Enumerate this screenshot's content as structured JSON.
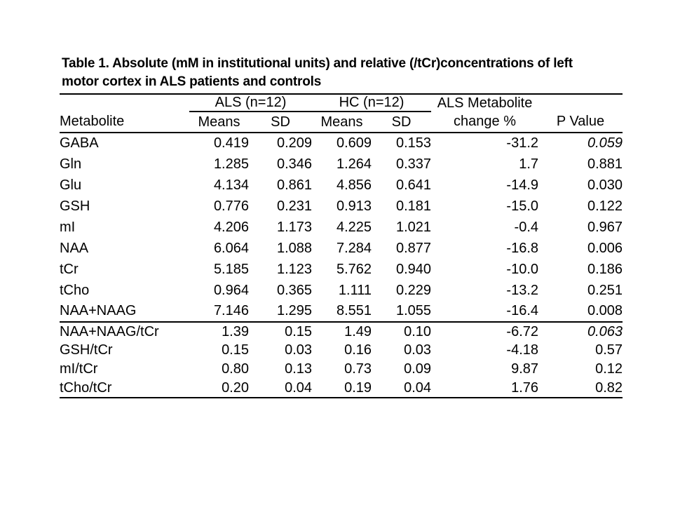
{
  "slide": {
    "title_line1": "Table 1. Absolute (mM in institutional units) and relative (/tCr)concentrations of left",
    "title_line2": "motor cortex in ALS patients and controls"
  },
  "table": {
    "group_headers": {
      "als": "ALS (n=12)",
      "hc": "HC (n=12)",
      "change_line1": "ALS Metabolite"
    },
    "column_headers": {
      "metabolite": "Metabolite",
      "als_means": "Means",
      "als_sd": "SD",
      "hc_means": "Means",
      "hc_sd": "SD",
      "change_line2": "change %",
      "p_value": "P Value"
    },
    "rows": [
      {
        "metabolite": "GABA",
        "als_mean": "0.419",
        "als_sd": "0.209",
        "hc_mean": "0.609",
        "hc_sd": "0.153",
        "change_pct": "-31.2",
        "p_value": "0.059",
        "p_style": "bold-italic",
        "section": "absolute"
      },
      {
        "metabolite": "Gln",
        "als_mean": "1.285",
        "als_sd": "0.346",
        "hc_mean": "1.264",
        "hc_sd": "0.337",
        "change_pct": "1.7",
        "p_value": "0.881",
        "p_style": "normal",
        "section": "absolute"
      },
      {
        "metabolite": "Glu",
        "als_mean": "4.134",
        "als_sd": "0.861",
        "hc_mean": "4.856",
        "hc_sd": "0.641",
        "change_pct": "-14.9",
        "p_value": "0.030",
        "p_style": "bold",
        "section": "absolute"
      },
      {
        "metabolite": "GSH",
        "als_mean": "0.776",
        "als_sd": "0.231",
        "hc_mean": "0.913",
        "hc_sd": "0.181",
        "change_pct": "-15.0",
        "p_value": "0.122",
        "p_style": "normal",
        "section": "absolute"
      },
      {
        "metabolite": "mI",
        "als_mean": "4.206",
        "als_sd": "1.173",
        "hc_mean": "4.225",
        "hc_sd": "1.021",
        "change_pct": "-0.4",
        "p_value": "0.967",
        "p_style": "normal",
        "section": "absolute"
      },
      {
        "metabolite": "NAA",
        "als_mean": "6.064",
        "als_sd": "1.088",
        "hc_mean": "7.284",
        "hc_sd": "0.877",
        "change_pct": "-16.8",
        "p_value": "0.006",
        "p_style": "bold",
        "section": "absolute"
      },
      {
        "metabolite": "tCr",
        "als_mean": "5.185",
        "als_sd": "1.123",
        "hc_mean": "5.762",
        "hc_sd": "0.940",
        "change_pct": "-10.0",
        "p_value": "0.186",
        "p_style": "normal",
        "section": "absolute"
      },
      {
        "metabolite": "tCho",
        "als_mean": "0.964",
        "als_sd": "0.365",
        "hc_mean": "1.111",
        "hc_sd": "0.229",
        "change_pct": "-13.2",
        "p_value": "0.251",
        "p_style": "normal",
        "section": "absolute"
      },
      {
        "metabolite": "NAA+NAAG",
        "als_mean": "7.146",
        "als_sd": "1.295",
        "hc_mean": "8.551",
        "hc_sd": "1.055",
        "change_pct": "-16.4",
        "p_value": "0.008",
        "p_style": "bold",
        "section": "absolute"
      },
      {
        "metabolite": "NAA+NAAG/tCr",
        "als_mean": "1.39",
        "als_sd": "0.15",
        "hc_mean": "1.49",
        "hc_sd": "0.10",
        "change_pct": "-6.72",
        "p_value": "0.063",
        "p_style": "bold-italic",
        "section": "relative"
      },
      {
        "metabolite": "GSH/tCr",
        "als_mean": "0.15",
        "als_sd": "0.03",
        "hc_mean": "0.16",
        "hc_sd": "0.03",
        "change_pct": "-4.18",
        "p_value": "0.57",
        "p_style": "normal",
        "section": "relative"
      },
      {
        "metabolite": "mI/tCr",
        "als_mean": "0.80",
        "als_sd": "0.13",
        "hc_mean": "0.73",
        "hc_sd": "0.09",
        "change_pct": "9.87",
        "p_value": "0.12",
        "p_style": "normal",
        "section": "relative"
      },
      {
        "metabolite": "tCho/tCr",
        "als_mean": "0.20",
        "als_sd": "0.04",
        "hc_mean": "0.19",
        "hc_sd": "0.04",
        "change_pct": "1.76",
        "p_value": "0.82",
        "p_style": "normal",
        "section": "relative"
      }
    ]
  }
}
